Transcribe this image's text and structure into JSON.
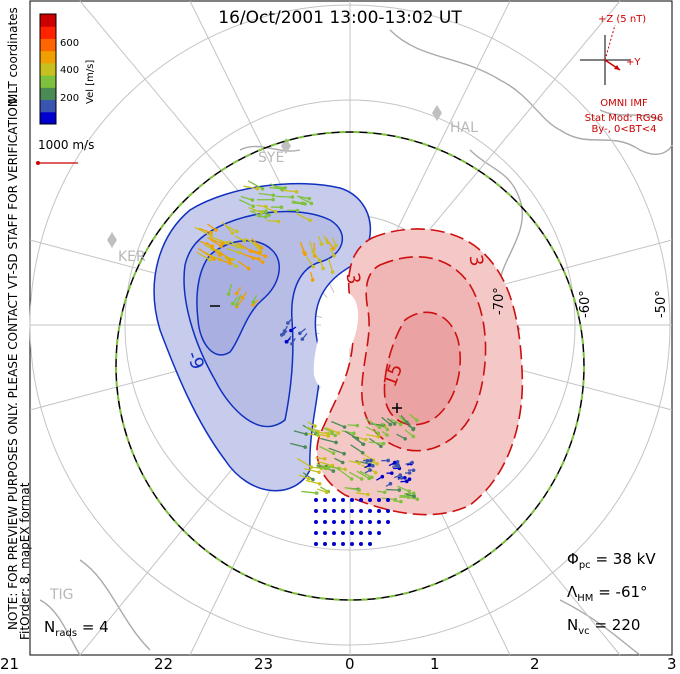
{
  "title": "16/Oct/2001 13:00-13:02 UT",
  "side_notes": {
    "verification": "NOTE: FOR PREVIEW PURPOSES ONLY. PLEASE CONTACT VT-SD STAFF FOR VERIFICATION.",
    "fit_order": "FitOrder: 8, mapEX format",
    "coordinates": "MLT coordinates"
  },
  "colorbar": {
    "label": "Vel [m/s]",
    "ticks": [
      "600",
      "400",
      "200"
    ],
    "colors": [
      "#0000cc",
      "#3a55b0",
      "#4b8a55",
      "#7fc13c",
      "#c8c020",
      "#f0a000",
      "#ff6600",
      "#ff2200",
      "#cc0000"
    ]
  },
  "scale_vector": {
    "label": "1000 m/s"
  },
  "mlt_ticks": [
    "21",
    "22",
    "23",
    "0",
    "1",
    "2",
    "3"
  ],
  "latitude_labels": [
    "-70°",
    "-60°",
    "-50°"
  ],
  "station_labels": [
    "SYE",
    "HAL",
    "KER",
    "TIG"
  ],
  "contour_labels": {
    "neg": [
      "-9",
      "-"
    ],
    "pos": [
      "3",
      "3",
      "15",
      "+"
    ]
  },
  "imf": {
    "z_label": "+Z (5 nT)",
    "y_label": "+Y",
    "source": "OMNI IMF",
    "stat_model": "Stat Mod: RG96",
    "condition": "By-, 0<BT<4"
  },
  "stats": {
    "phi_pc": "Φ",
    "phi_sub": "pc",
    "phi_value": "= 38 kV",
    "lambda_hm": "Λ",
    "lambda_sub": "HM",
    "lambda_value": "= -61°",
    "n_vc": "N",
    "n_vc_sub": "vc",
    "n_vc_value": "= 220",
    "n_rads": "N",
    "n_rads_sub": "rads",
    "n_rads_value": "= 4"
  },
  "colors": {
    "neg_fill": "#c8ccec",
    "neg_line": "#1030c0",
    "pos_fill": "#f5c8c8",
    "pos_line": "#cc1010",
    "grid": "#c0c0c0",
    "coast": "#a8a8a8",
    "boundary_dash": "#80c040"
  }
}
